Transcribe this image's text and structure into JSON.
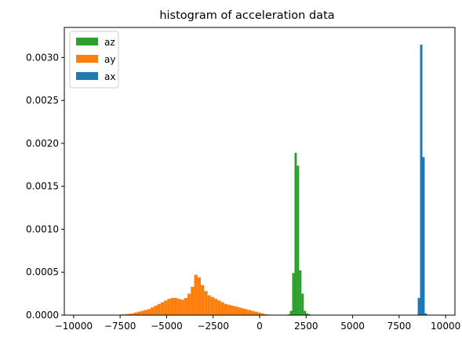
{
  "chart_data": {
    "type": "bar",
    "title": "histogram of acceleration data",
    "xlabel": "",
    "ylabel": "",
    "xlim": [
      -10500,
      10500
    ],
    "ylim": [
      0,
      0.00335
    ],
    "x_ticks": [
      -10000,
      -7500,
      -5000,
      -2500,
      0,
      2500,
      5000,
      7500,
      10000
    ],
    "x_tick_labels": [
      "−10000",
      "−7500",
      "−5000",
      "−2500",
      "0",
      "2500",
      "5000",
      "7500",
      "10000"
    ],
    "y_ticks": [
      0,
      0.0005,
      0.001,
      0.0015,
      0.002,
      0.0025,
      0.003
    ],
    "y_tick_labels": [
      "0.0000",
      "0.0005",
      "0.0010",
      "0.0015",
      "0.0020",
      "0.0025",
      "0.0030"
    ],
    "grid": false,
    "legend_position": "top-left",
    "legend": [
      {
        "name": "az",
        "color": "#2ca02c"
      },
      {
        "name": "ay",
        "color": "#ff7f0e"
      },
      {
        "name": "ax",
        "color": "#1f77b4"
      }
    ],
    "series": [
      {
        "name": "ay",
        "color": "#ff7f0e",
        "bin_width": 180,
        "bin_start": -10000,
        "values": [
          3e-06,
          3e-06,
          3e-06,
          3e-06,
          3e-06,
          3e-06,
          3e-06,
          3e-06,
          3e-06,
          3e-06,
          3e-06,
          3e-06,
          3e-06,
          5e-06,
          8e-06,
          1e-05,
          1.5e-05,
          2e-05,
          3e-05,
          4e-05,
          5e-05,
          6e-05,
          7e-05,
          9e-05,
          0.00011,
          0.00013,
          0.00015,
          0.00017,
          0.00019,
          0.0002,
          0.0002,
          0.00019,
          0.00018,
          0.0002,
          0.00025,
          0.00033,
          0.00047,
          0.00044,
          0.00035,
          0.00028,
          0.00023,
          0.00021,
          0.00019,
          0.00017,
          0.00015,
          0.00013,
          0.00012,
          0.00011,
          0.0001,
          9e-05,
          8e-05,
          7e-05,
          6e-05,
          5e-05,
          4e-05,
          3e-05,
          2e-05,
          1e-05,
          5e-06,
          3e-06
        ]
      },
      {
        "name": "az",
        "color": "#2ca02c",
        "bin_width": 125,
        "bin_start": 1500,
        "values": [
          1e-05,
          5e-05,
          0.00049,
          0.00189,
          0.00174,
          0.00052,
          0.00025,
          5e-05,
          2e-05,
          1e-05
        ]
      },
      {
        "name": "ax",
        "color": "#1f77b4",
        "bin_width": 125,
        "bin_start": 8500,
        "values": [
          0.0002,
          0.00315,
          0.00184,
          2e-05
        ]
      }
    ]
  }
}
